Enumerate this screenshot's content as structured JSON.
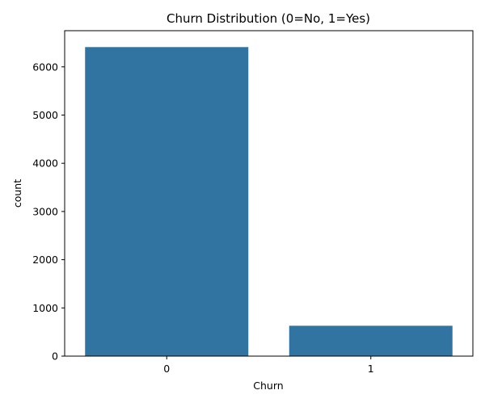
{
  "chart_data": {
    "type": "bar",
    "title": "Churn Distribution (0=No, 1=Yes)",
    "xlabel": "Churn",
    "ylabel": "count",
    "categories": [
      "0",
      "1"
    ],
    "values": [
      6410,
      630
    ],
    "ylim": [
      0,
      6750
    ],
    "yticks": [
      0,
      1000,
      2000,
      3000,
      4000,
      5000,
      6000
    ],
    "grid": false,
    "legend": "none",
    "bar_color": "#3274a1"
  }
}
